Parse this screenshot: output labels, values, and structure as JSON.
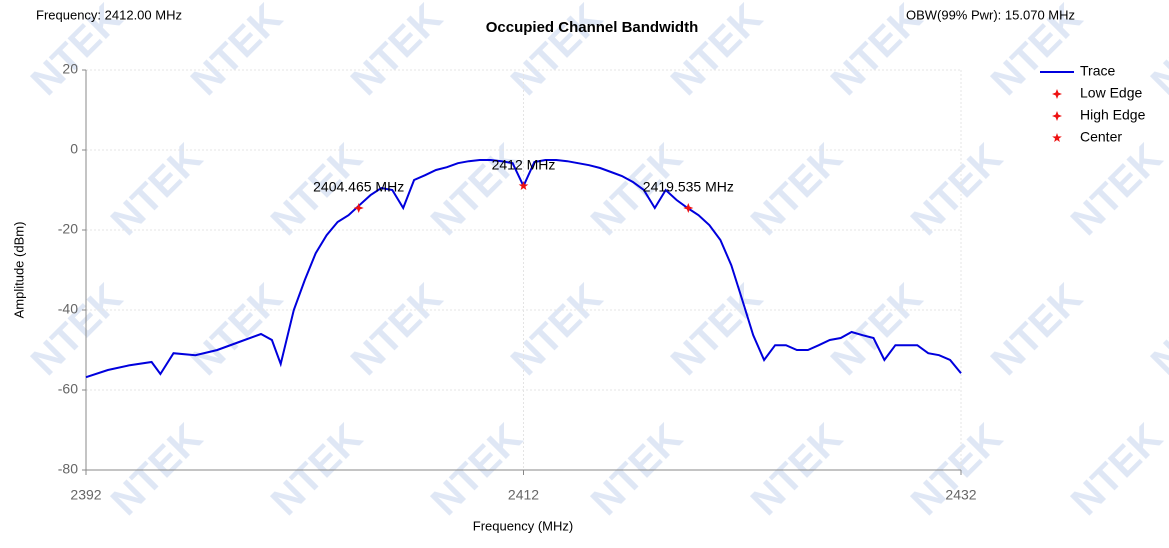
{
  "chart_data": {
    "type": "line",
    "title": "Occupied Channel Bandwidth",
    "header_left": "Frequency: 2412.00 MHz",
    "header_right": "OBW(99% Pwr): 15.070 MHz",
    "x_label": "Frequency (MHz)",
    "y_label": "Amplitude (dBm)",
    "watermark": "NTEK",
    "xlim": [
      2392,
      2432
    ],
    "xticks": [
      2392,
      2412,
      2432
    ],
    "ylim": [
      -80,
      20
    ],
    "yticks": [
      20,
      0,
      -20,
      -40,
      -60,
      -80
    ],
    "grid": true,
    "series": [
      {
        "name": "Trace",
        "color": "#0000dd",
        "kind": "line",
        "x": [
          2392,
          2393,
          2394,
          2395,
          2395.4,
          2396,
          2397,
          2398,
          2399,
          2400,
          2400.5,
          2400.9,
          2401.5,
          2402,
          2402.5,
          2403,
          2403.5,
          2404,
          2404.5,
          2405,
          2405.5,
          2406,
          2406.5,
          2407,
          2407.5,
          2408,
          2408.5,
          2409,
          2409.5,
          2410,
          2410.5,
          2411,
          2411.5,
          2412,
          2412.5,
          2413,
          2413.5,
          2414,
          2414.5,
          2415,
          2415.5,
          2416,
          2416.5,
          2417,
          2417.5,
          2418,
          2418.5,
          2419,
          2419.5,
          2420,
          2420.5,
          2421,
          2421.5,
          2422,
          2422.5,
          2423,
          2423.5,
          2424,
          2424.5,
          2425,
          2425.5,
          2426,
          2426.5,
          2427,
          2427.5,
          2428,
          2428.5,
          2429,
          2429.5,
          2430,
          2430.5,
          2431,
          2431.5,
          2432
        ],
        "values": [
          -56.8,
          -55,
          -53.8,
          -53,
          -56,
          -50.8,
          -51.3,
          -50,
          -48,
          -46,
          -47.5,
          -53.5,
          -40,
          -32.5,
          -25.8,
          -21.3,
          -18,
          -16.3,
          -13.8,
          -11.3,
          -9.5,
          -10,
          -14.5,
          -7.5,
          -6.3,
          -5,
          -4.3,
          -3.3,
          -2.8,
          -2.5,
          -2.5,
          -2.8,
          -3.3,
          -9,
          -3,
          -2.5,
          -2.5,
          -2.8,
          -3.3,
          -3.8,
          -4.5,
          -5.5,
          -6.5,
          -8,
          -10,
          -14.5,
          -10,
          -12.5,
          -14.5,
          -16.3,
          -18.8,
          -22.5,
          -28.8,
          -37.5,
          -46.3,
          -52.5,
          -48.8,
          -48.8,
          -50,
          -50,
          -48.8,
          -47.5,
          -47,
          -45.5,
          -46.3,
          -47,
          -52.5,
          -48.8,
          -48.8,
          -48.8,
          -50.8,
          -51.3,
          -52.5,
          -55.8
        ]
      },
      {
        "name": "Low Edge",
        "color": "#ee1111",
        "kind": "point",
        "x": [
          2404.465
        ],
        "values": [
          -14.5
        ],
        "value_labels": [
          "2404.465 MHz"
        ]
      },
      {
        "name": "High Edge",
        "color": "#ee1111",
        "kind": "point",
        "x": [
          2419.535
        ],
        "values": [
          -14.5
        ],
        "value_labels": [
          "2419.535 MHz"
        ]
      },
      {
        "name": "Center",
        "color": "#ee1111",
        "kind": "star",
        "x": [
          2412
        ],
        "values": [
          -9
        ],
        "value_labels": [
          "2412 MHz"
        ]
      }
    ]
  }
}
